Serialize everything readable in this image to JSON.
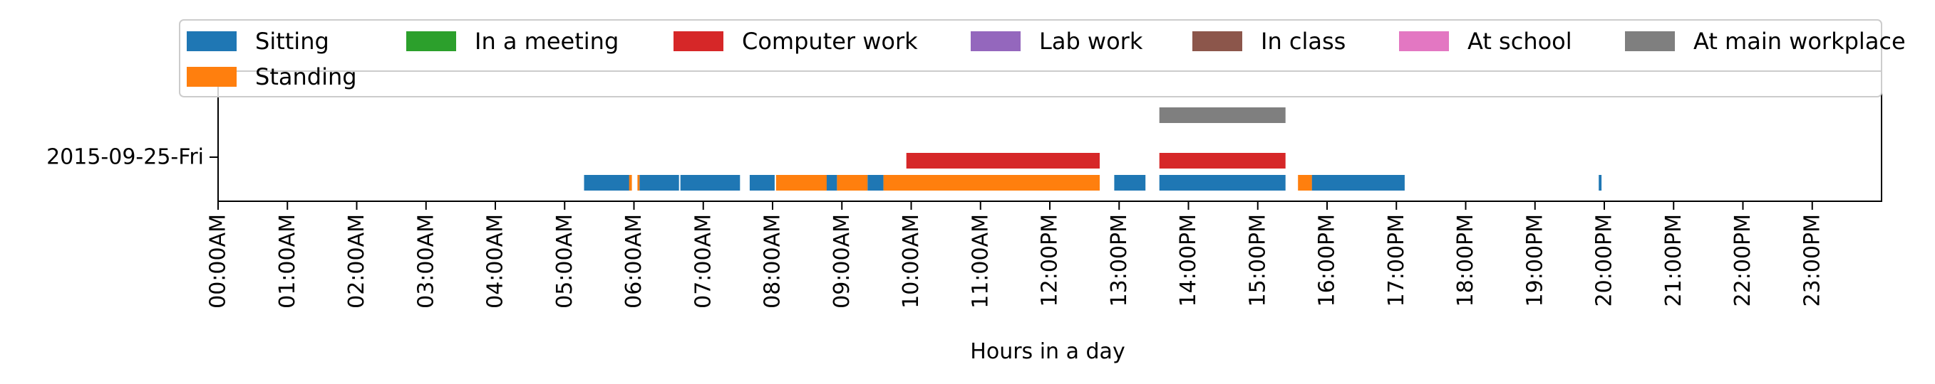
{
  "chart_data": {
    "type": "bar",
    "subtype": "timeline",
    "title": "",
    "xlabel": "Hours in a day",
    "ylabel": "",
    "xlim": [
      0,
      24
    ],
    "y_categories": [
      "2015-09-25-Fri"
    ],
    "x_tick_labels": [
      "00:00AM",
      "01:00AM",
      "02:00AM",
      "03:00AM",
      "04:00AM",
      "05:00AM",
      "06:00AM",
      "07:00AM",
      "08:00AM",
      "09:00AM",
      "10:00AM",
      "11:00AM",
      "12:00PM",
      "13:00PM",
      "14:00PM",
      "15:00PM",
      "16:00PM",
      "17:00PM",
      "18:00PM",
      "19:00PM",
      "20:00PM",
      "21:00PM",
      "22:00PM",
      "23:00PM"
    ],
    "x_tick_values": [
      0,
      1,
      2,
      3,
      4,
      5,
      6,
      7,
      8,
      9,
      10,
      11,
      12,
      13,
      14,
      15,
      16,
      17,
      18,
      19,
      20,
      21,
      22,
      23
    ],
    "grid": false,
    "legend_position": "top",
    "series": [
      {
        "name": "Sitting",
        "color": "#1f77b4",
        "lane": 0,
        "intervals": [
          [
            5.28,
            5.95
          ],
          [
            6.08,
            6.65
          ],
          [
            6.67,
            7.53
          ],
          [
            7.67,
            8.03
          ],
          [
            8.75,
            8.93
          ],
          [
            9.37,
            9.6
          ],
          [
            12.68,
            12.72
          ],
          [
            12.93,
            13.38
          ],
          [
            13.58,
            15.4
          ],
          [
            15.78,
            17.12
          ],
          [
            19.92,
            19.96
          ]
        ]
      },
      {
        "name": "Standing",
        "color": "#ff7f0e",
        "lane": 0,
        "intervals": [
          [
            5.93,
            5.97
          ],
          [
            6.05,
            6.08
          ],
          [
            8.05,
            8.78
          ],
          [
            8.93,
            9.37
          ],
          [
            9.6,
            12.72
          ],
          [
            15.58,
            15.78
          ]
        ]
      },
      {
        "name": "In a meeting",
        "color": "#2ca02c",
        "lane": 1,
        "intervals": []
      },
      {
        "name": "Computer work",
        "color": "#d62728",
        "lane": 1,
        "intervals": [
          [
            9.93,
            12.72
          ],
          [
            13.58,
            15.4
          ]
        ]
      },
      {
        "name": "Lab work",
        "color": "#9467bd",
        "lane": 1,
        "intervals": []
      },
      {
        "name": "In class",
        "color": "#8c564b",
        "lane": 2,
        "intervals": []
      },
      {
        "name": "At school",
        "color": "#e377c2",
        "lane": 2,
        "intervals": []
      },
      {
        "name": "At main workplace",
        "color": "#7f7f7f",
        "lane": 2,
        "intervals": [
          [
            13.58,
            15.4
          ]
        ]
      }
    ],
    "legend_order": [
      "Sitting",
      "In a meeting",
      "Computer work",
      "Lab work",
      "In class",
      "At school",
      "At main workplace",
      "Standing"
    ]
  }
}
